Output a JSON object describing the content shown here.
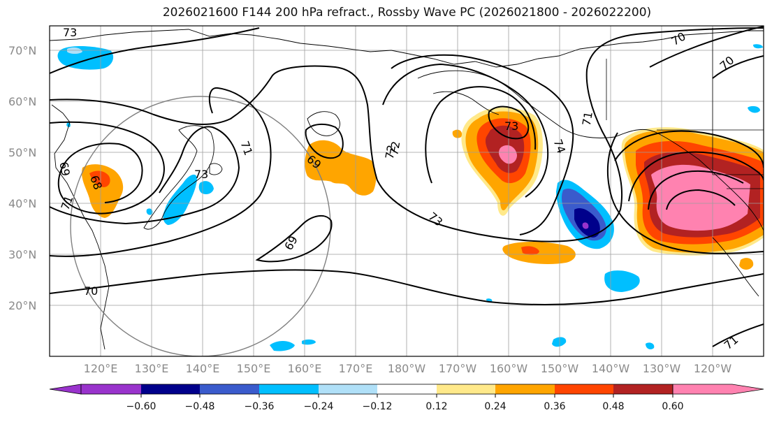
{
  "title": "2026021600 F144 200 hPa refract., Rossby Wave PC (2026021800 - 2026022200)",
  "map": {
    "lat_labels": [
      "70°N",
      "60°N",
      "50°N",
      "40°N",
      "30°N",
      "20°N"
    ],
    "lon_labels": [
      "120°E",
      "130°E",
      "140°E",
      "150°E",
      "160°E",
      "170°E",
      "180°W",
      "170°W",
      "160°W",
      "150°W",
      "140°W",
      "130°W",
      "120°W"
    ],
    "contour_labels": [
      "73",
      "69",
      "68",
      "70",
      "72",
      "71",
      "73",
      "69",
      "71",
      "72",
      "73",
      "74",
      "71",
      "70",
      "69",
      "70",
      "71",
      "73"
    ]
  },
  "colorbar": {
    "ticks": [
      "−0.60",
      "−0.48",
      "−0.36",
      "−0.24",
      "−0.12",
      "0.12",
      "0.24",
      "0.36",
      "0.48",
      "0.60"
    ],
    "colors": [
      "#9933cc",
      "#00008b",
      "#3a5bcc",
      "#00bfff",
      "#b0e0f8",
      "#ffffff",
      "#ffe98a",
      "#ffa500",
      "#ff4500",
      "#b22222",
      "#ff82b0"
    ]
  }
}
